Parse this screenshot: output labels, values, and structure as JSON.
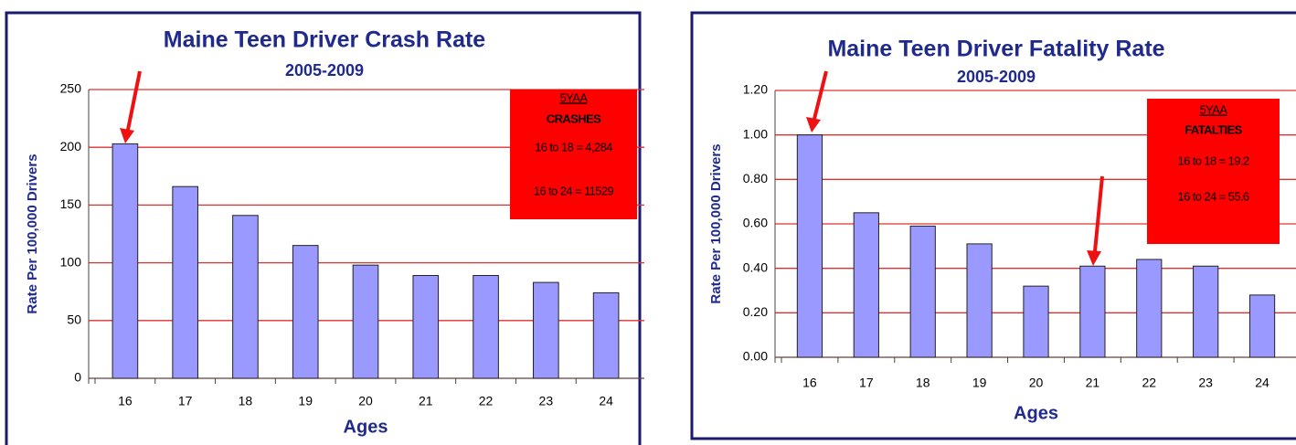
{
  "chart_data": [
    {
      "type": "bar",
      "title": "Maine Teen Driver Crash Rate",
      "subtitle": "2005-2009",
      "y_label": "Rate Per 100,000 Drivers",
      "x_label": "Ages",
      "categories": [
        "16",
        "17",
        "18",
        "19",
        "20",
        "21",
        "22",
        "23",
        "24"
      ],
      "values": [
        203,
        166,
        141,
        115,
        98,
        89,
        89,
        83,
        74
      ],
      "color": "#9999ff",
      "grid_color": "#e03030",
      "ylim": [
        0,
        250
      ],
      "yticks": [
        0,
        50,
        100,
        150,
        200,
        250
      ],
      "grid": true,
      "annotation": [
        "5YAA",
        "CRASHES",
        "16 to 18 =  4,284",
        "16 to 24 = 11529"
      ]
    },
    {
      "type": "bar",
      "title": "Maine Teen Driver Fatality Rate",
      "subtitle": "2005-2009",
      "y_label": "Rate Per 100,000 Drivers",
      "x_label": "Ages",
      "categories": [
        "16",
        "17",
        "18",
        "19",
        "20",
        "21",
        "22",
        "23",
        "24"
      ],
      "values": [
        1.0,
        0.65,
        0.59,
        0.51,
        0.32,
        0.41,
        0.44,
        0.41,
        0.28
      ],
      "color": "#9999ff",
      "grid_color": "#e03030",
      "ylim": [
        0,
        1.2
      ],
      "yticks": [
        {
          "value": 0,
          "label": "0.00"
        },
        {
          "value": 0.2,
          "label": "0.20"
        },
        {
          "value": 0.4,
          "label": "0.40"
        },
        {
          "value": 0.6,
          "label": "0.60"
        },
        {
          "value": 0.8,
          "label": "0.80"
        },
        {
          "value": 1.0,
          "label": "1.00"
        },
        {
          "value": 1.2,
          "label": "1.20"
        }
      ],
      "grid": true,
      "annotation": [
        "5YAA",
        "FATALTIES",
        "16 to 18 = 19.2",
        "16 to 24 = 55.6"
      ]
    }
  ]
}
